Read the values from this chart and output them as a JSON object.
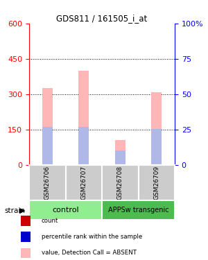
{
  "title": "GDS811 / 161505_i_at",
  "samples": [
    "GSM26706",
    "GSM26707",
    "GSM26708",
    "GSM26709"
  ],
  "ylim_left": [
    0,
    600
  ],
  "ylim_right": [
    0,
    100
  ],
  "yticks_left": [
    0,
    150,
    300,
    450,
    600
  ],
  "yticks_right": [
    0,
    25,
    50,
    75,
    100
  ],
  "ytick_labels_right": [
    "0",
    "25",
    "50",
    "75",
    "100%"
  ],
  "bars": [
    {
      "absent_value": 325,
      "absent_rank": 162
    },
    {
      "absent_value": 400,
      "absent_rank": 162
    },
    {
      "absent_value": 105,
      "absent_rank": 62
    },
    {
      "absent_value": 308,
      "absent_rank": 152
    }
  ],
  "color_present_value": "#cc0000",
  "color_present_rank": "#0000cc",
  "color_absent_value": "#ffb6b6",
  "color_absent_rank": "#b0b8e8",
  "sample_box_color": "#cccccc",
  "group_box_color_control": "#90ee90",
  "group_box_color_transgenic": "#4dbb4d",
  "bar_width": 0.28
}
